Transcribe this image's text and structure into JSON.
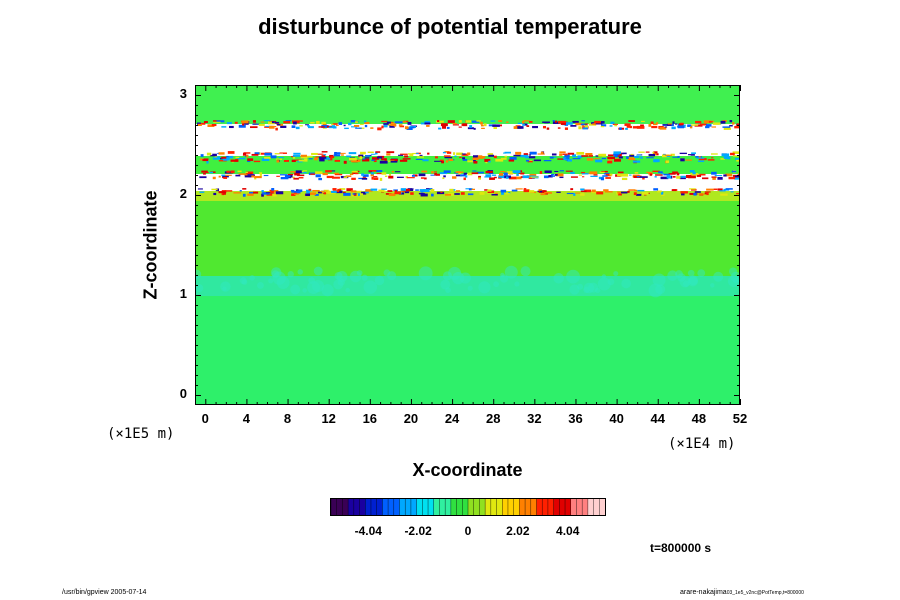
{
  "chart_data": {
    "type": "heatmap",
    "title": "disturbunce of potential temperature",
    "xlabel": "X-coordinate",
    "ylabel": "Z-coordinate",
    "x_multiplier": "(×1E4 m)",
    "y_multiplier": "(×1E5 m)",
    "x_ticks": [
      "0",
      "4",
      "8",
      "12",
      "16",
      "20",
      "24",
      "28",
      "32",
      "36",
      "40",
      "44",
      "48",
      "52"
    ],
    "x_tick_values": [
      0,
      4,
      8,
      12,
      16,
      20,
      24,
      28,
      32,
      36,
      40,
      44,
      48,
      52
    ],
    "y_ticks": [
      "0",
      "1",
      "2",
      "3"
    ],
    "y_tick_values": [
      0,
      1,
      2,
      3
    ],
    "xlim": [
      -1,
      52
    ],
    "ylim": [
      -0.1,
      3.1
    ],
    "colorbar": {
      "ticks": [
        "-4.04",
        "-2.02",
        "0",
        "2.02",
        "4.04"
      ],
      "tick_values": [
        -4.04,
        -2.02,
        0,
        2.02,
        4.04
      ],
      "range": [
        -5.55,
        5.55
      ],
      "colors": [
        "#3a0055",
        "#1a00a0",
        "#0020d0",
        "#0060ff",
        "#00a8ff",
        "#00e0f0",
        "#30f0a0",
        "#30e040",
        "#90e020",
        "#e0e810",
        "#ffd000",
        "#ff8000",
        "#ff2000",
        "#e00000",
        "#ff8080",
        "#ffd0d0"
      ]
    },
    "layers": [
      {
        "z": [
          -0.1,
          1.2
        ],
        "value": 0.0,
        "color": "#2ef06a"
      },
      {
        "z": [
          1.0,
          1.2
        ],
        "value": -0.5,
        "color": "#30e8a0"
      },
      {
        "z": [
          1.2,
          1.95
        ],
        "value": 0.3,
        "color": "#50e830"
      },
      {
        "z": [
          1.95,
          2.05
        ],
        "value": 1.5,
        "color": "#b0e820"
      },
      {
        "z": [
          2.05,
          2.22
        ],
        "value": 6.0,
        "color": "#ffffff"
      },
      {
        "z": [
          2.22,
          2.4
        ],
        "value": 2.0,
        "color": "#40f040"
      },
      {
        "z": [
          2.4,
          2.72
        ],
        "value": 6.0,
        "color": "#ffffff"
      },
      {
        "z": [
          2.72,
          3.1
        ],
        "value": 0.8,
        "color": "#40f050"
      }
    ],
    "background_mid": "#30ee70"
  },
  "annotations": {
    "time": "t=800000 s",
    "footer_left": "/usr/bin/gpview 2005-07-14",
    "footer_right": "arare-nakajima",
    "footer_right_small": "03_1e5_v2nc@PotTemp,t=800000"
  }
}
